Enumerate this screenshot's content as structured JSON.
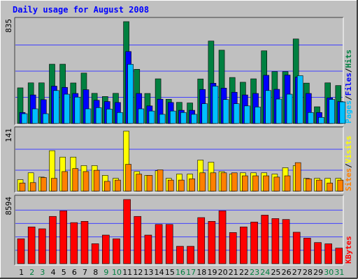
{
  "colors": {
    "background": "#C0C0C0",
    "border_light": "#FFFFFF",
    "border_dark": "#404040",
    "title": "#0000FF",
    "grid": "#4040FF",
    "hits": "#008040",
    "files": "#0000FF",
    "pages": "#00C0FF",
    "visits": "#FFFF00",
    "sites": "#FF8000",
    "kbytes": "#FF0000",
    "day_label": "#000000",
    "weekend_label": "#008040"
  },
  "chart_data": [
    {
      "type": "bar",
      "title": "Daily usage for August 2008",
      "y_max_label": "835",
      "legend": [
        {
          "name": "Pages",
          "color": "#00C0FF"
        },
        {
          "name": "Files",
          "color": "#0000FF"
        },
        {
          "name": "Hits",
          "color": "#008040"
        }
      ],
      "ylim": [
        0,
        835
      ],
      "categories": [
        "1",
        "2",
        "3",
        "4",
        "5",
        "6",
        "7",
        "8",
        "9",
        "10",
        "11",
        "12",
        "13",
        "14",
        "15",
        "16",
        "17",
        "18",
        "19",
        "20",
        "21",
        "22",
        "23",
        "24",
        "25",
        "26",
        "27",
        "28",
        "29",
        "30",
        "31"
      ],
      "series": [
        {
          "name": "Hits",
          "values": [
            292,
            333,
            333,
            486,
            486,
            332,
            413,
            247,
            221,
            247,
            835,
            444,
            246,
            366,
            198,
            173,
            168,
            365,
            676,
            601,
            377,
            338,
            366,
            596,
            425,
            425,
            693,
            331,
            137,
            333,
            311
          ]
        },
        {
          "name": "Files",
          "values": [
            90,
            234,
            195,
            306,
            296,
            246,
            277,
            190,
            180,
            172,
            590,
            246,
            144,
            199,
            172,
            108,
            108,
            279,
            330,
            290,
            256,
            234,
            246,
            395,
            280,
            397,
            380,
            246,
            90,
            210,
            180
          ]
        },
        {
          "name": "Pages",
          "values": [
            80,
            120,
            80,
            270,
            240,
            216,
            120,
            130,
            118,
            90,
            485,
            120,
            102,
            75,
            102,
            90,
            75,
            162,
            306,
            196,
            162,
            144,
            135,
            270,
            200,
            240,
            392,
            90,
            50,
            197,
            177
          ]
        }
      ]
    },
    {
      "type": "bar",
      "y_max_label": "141",
      "legend": [
        {
          "name": "Sites",
          "color": "#FF8000"
        },
        {
          "name": "Visits",
          "color": "#FFFF00"
        }
      ],
      "ylim": [
        0,
        141
      ],
      "categories": [
        "1",
        "2",
        "3",
        "4",
        "5",
        "6",
        "7",
        "8",
        "9",
        "10",
        "11",
        "12",
        "13",
        "14",
        "15",
        "16",
        "17",
        "18",
        "19",
        "20",
        "21",
        "22",
        "23",
        "24",
        "25",
        "26",
        "27",
        "28",
        "29",
        "30",
        "31"
      ],
      "series": [
        {
          "name": "Visits",
          "values": [
            27,
            43,
            33,
            95,
            80,
            80,
            60,
            60,
            37,
            30,
            141,
            46,
            37,
            48,
            30,
            40,
            40,
            73,
            68,
            46,
            40,
            43,
            43,
            43,
            40,
            55,
            60,
            30,
            30,
            30,
            30
          ]
        },
        {
          "name": "Sites",
          "values": [
            19,
            20,
            32,
            30,
            46,
            53,
            46,
            49,
            23,
            26,
            63,
            40,
            37,
            50,
            26,
            26,
            29,
            43,
            43,
            43,
            43,
            36,
            36,
            36,
            33,
            36,
            67,
            29,
            26,
            19,
            26
          ]
        }
      ]
    },
    {
      "type": "bar",
      "y_max_label": "8594",
      "legend": [
        {
          "name": "KBytes",
          "color": "#FF0000"
        }
      ],
      "ylim": [
        0,
        8594
      ],
      "categories": [
        "1",
        "2",
        "3",
        "4",
        "5",
        "6",
        "7",
        "8",
        "9",
        "10",
        "11",
        "12",
        "13",
        "14",
        "15",
        "16",
        "17",
        "18",
        "19",
        "20",
        "21",
        "22",
        "23",
        "24",
        "25",
        "26",
        "27",
        "28",
        "29",
        "30",
        "31"
      ],
      "series": [
        {
          "name": "KBytes",
          "values": [
            3330,
            4920,
            4670,
            6330,
            7080,
            5500,
            5670,
            2670,
            3830,
            3330,
            8594,
            6330,
            3830,
            5250,
            5250,
            2330,
            2330,
            6170,
            5670,
            7080,
            4170,
            4920,
            5580,
            6500,
            6040,
            5920,
            4210,
            3420,
            2830,
            2660,
            2080
          ]
        }
      ]
    }
  ],
  "weekend_days": [
    "2",
    "3",
    "9",
    "10",
    "16",
    "17",
    "23",
    "24",
    "30",
    "31"
  ]
}
